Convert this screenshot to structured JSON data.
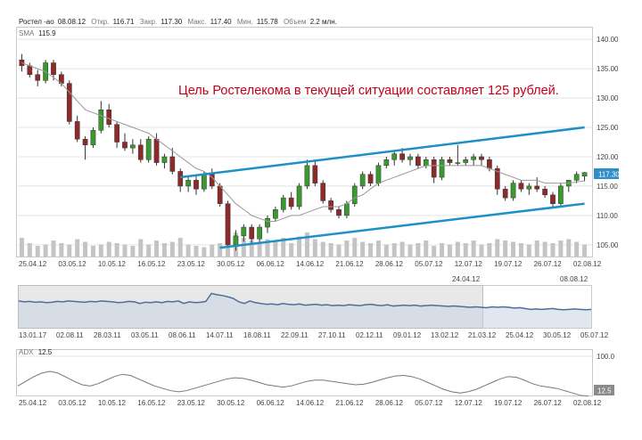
{
  "header": {
    "ticker": "Ростел -ао",
    "date": "08.08.12",
    "open_label": "Откр.",
    "open": "116.71",
    "close_label": "Закр.",
    "close": "117.30",
    "high_label": "Макс.",
    "high": "117.40",
    "low_label": "Мин.",
    "low": "115.78",
    "volume_label": "Объем",
    "volume": "2.2 млн."
  },
  "sma": {
    "label": "SMA",
    "value": "115.9"
  },
  "annotation": "Цель Ростелекома в текущей ситуации составляет 125 рублей.",
  "price_badge": "117.30",
  "adx": {
    "label": "ADX",
    "value": "12.5",
    "top_tick": "100.0"
  },
  "navigator": {
    "start_label": "24.04.12",
    "end_label": "08.08.12",
    "ticks": [
      "13.01.17",
      "02.08.11",
      "28.03.11",
      "03.05.11",
      "08.06.11",
      "14.07.11",
      "18.08.11",
      "22.09.11",
      "27.10.11",
      "02.12.11",
      "09.01.12",
      "13.02.12",
      "21.03.12",
      "25.04.12",
      "30.05.12",
      "05.07.12"
    ],
    "series": [
      64,
      62,
      63,
      61,
      62,
      60,
      61,
      63,
      62,
      64,
      63,
      62,
      61,
      63,
      62,
      64,
      63,
      62,
      60,
      61,
      63,
      62,
      58,
      61,
      60,
      62,
      60,
      63,
      62,
      64,
      58,
      62,
      60,
      61,
      63,
      82,
      79,
      77,
      74,
      70,
      62,
      58,
      64,
      60,
      58,
      56,
      57,
      55,
      58,
      56,
      55,
      57,
      54,
      55,
      56,
      54,
      55,
      53,
      54,
      53,
      55,
      54,
      53,
      55,
      56,
      54,
      53,
      55,
      52,
      53,
      54,
      53,
      54,
      52,
      53,
      54,
      53,
      52,
      51,
      52,
      51,
      50,
      49,
      50,
      49,
      48,
      50,
      49,
      50,
      49,
      47,
      48,
      46,
      44,
      45,
      44,
      45,
      46,
      44,
      43,
      44,
      45,
      44,
      43,
      44
    ]
  },
  "colors": {
    "up": "#3a9a2e",
    "down": "#8f2a2a",
    "sma": "#999999",
    "channel": "#1d90c8",
    "annotation": "#c0001a",
    "adx": "#777777",
    "navigator": "#4f6f96"
  },
  "chart_data": {
    "type": "candlestick",
    "title": "",
    "xlabel": "",
    "ylabel": "",
    "ylim": [
      103,
      142
    ],
    "ytick_labels": [
      "105.00",
      "110.00",
      "115.00",
      "120.00",
      "125.00",
      "130.00",
      "135.00",
      "140.00"
    ],
    "xtick_labels": [
      "25.04.12",
      "03.05.12",
      "10.05.12",
      "16.05.12",
      "23.05.12",
      "30.05.12",
      "06.06.12",
      "14.06.12",
      "21.06.12",
      "28.06.12",
      "05.07.12",
      "12.07.12",
      "19.07.12",
      "26.07.12",
      "02.08.12"
    ],
    "ohlc": [
      [
        136.5,
        137.5,
        134.5,
        135.5
      ],
      [
        135.5,
        136.0,
        133.5,
        134.0
      ],
      [
        134.0,
        134.8,
        132.0,
        133.0
      ],
      [
        133.0,
        136.5,
        132.5,
        136.0
      ],
      [
        136.0,
        136.5,
        133.0,
        134.0
      ],
      [
        134.0,
        134.5,
        132.0,
        132.5
      ],
      [
        132.5,
        133.0,
        125.5,
        126.0
      ],
      [
        126.0,
        127.0,
        122.5,
        123.0
      ],
      [
        123.0,
        123.5,
        119.5,
        122.0
      ],
      [
        122.0,
        125.0,
        121.5,
        124.5
      ],
      [
        124.5,
        129.5,
        124.0,
        128.0
      ],
      [
        128.0,
        129.0,
        125.0,
        125.5
      ],
      [
        125.5,
        126.0,
        121.5,
        122.5
      ],
      [
        122.5,
        124.0,
        121.0,
        121.5
      ],
      [
        121.5,
        123.0,
        120.5,
        122.0
      ],
      [
        122.0,
        123.0,
        119.0,
        119.5
      ],
      [
        119.5,
        123.5,
        119.0,
        123.0
      ],
      [
        123.0,
        124.0,
        118.5,
        119.0
      ],
      [
        119.0,
        120.5,
        118.0,
        120.0
      ],
      [
        120.0,
        121.5,
        117.0,
        117.5
      ],
      [
        117.5,
        118.0,
        114.0,
        115.0
      ],
      [
        115.0,
        116.5,
        114.0,
        116.0
      ],
      [
        116.0,
        117.0,
        113.5,
        114.5
      ],
      [
        114.5,
        117.5,
        114.0,
        117.0
      ],
      [
        117.0,
        118.0,
        114.5,
        115.0
      ],
      [
        115.0,
        115.5,
        111.5,
        112.0
      ],
      [
        112.0,
        112.5,
        104.5,
        105.0
      ],
      [
        105.0,
        107.5,
        104.0,
        106.5
      ],
      [
        106.5,
        108.5,
        105.5,
        108.0
      ],
      [
        108.0,
        108.5,
        105.0,
        106.0
      ],
      [
        106.0,
        108.5,
        105.5,
        108.0
      ],
      [
        108.0,
        110.0,
        107.0,
        109.5
      ],
      [
        109.5,
        111.5,
        109.0,
        111.0
      ],
      [
        111.0,
        113.5,
        110.5,
        113.0
      ],
      [
        113.0,
        114.0,
        111.0,
        111.5
      ],
      [
        111.5,
        115.5,
        111.0,
        115.0
      ],
      [
        115.0,
        119.5,
        114.5,
        118.5
      ],
      [
        118.5,
        119.5,
        115.0,
        115.5
      ],
      [
        115.5,
        116.0,
        112.0,
        112.5
      ],
      [
        112.5,
        113.0,
        110.5,
        111.0
      ],
      [
        111.0,
        111.5,
        109.5,
        110.0
      ],
      [
        110.0,
        112.5,
        109.5,
        112.0
      ],
      [
        112.0,
        115.5,
        111.5,
        115.0
      ],
      [
        115.0,
        117.5,
        114.5,
        117.0
      ],
      [
        117.0,
        117.5,
        115.0,
        115.5
      ],
      [
        115.5,
        119.0,
        115.0,
        118.5
      ],
      [
        118.5,
        120.0,
        118.0,
        119.5
      ],
      [
        119.5,
        121.0,
        118.5,
        120.5
      ],
      [
        120.5,
        121.5,
        119.0,
        119.5
      ],
      [
        119.5,
        120.5,
        118.5,
        120.0
      ],
      [
        120.0,
        120.5,
        118.0,
        118.5
      ],
      [
        118.5,
        120.0,
        118.0,
        119.5
      ],
      [
        119.5,
        120.0,
        115.5,
        116.5
      ],
      [
        116.5,
        120.0,
        116.0,
        119.5
      ],
      [
        119.5,
        120.0,
        118.5,
        119.0
      ],
      [
        119.0,
        122.0,
        118.5,
        119.0
      ],
      [
        119.0,
        120.0,
        118.5,
        119.5
      ],
      [
        119.5,
        120.5,
        118.5,
        120.0
      ],
      [
        120.0,
        120.5,
        118.5,
        119.5
      ],
      [
        119.5,
        120.0,
        117.5,
        118.0
      ],
      [
        118.0,
        118.5,
        113.5,
        114.5
      ],
      [
        114.5,
        115.0,
        112.5,
        113.0
      ],
      [
        113.0,
        116.0,
        112.5,
        115.5
      ],
      [
        115.5,
        116.0,
        114.0,
        114.5
      ],
      [
        114.5,
        115.5,
        113.5,
        115.0
      ],
      [
        115.0,
        116.5,
        114.0,
        114.5
      ],
      [
        114.5,
        115.0,
        113.0,
        113.5
      ],
      [
        113.5,
        114.0,
        111.5,
        112.0
      ],
      [
        112.0,
        115.5,
        111.5,
        115.0
      ],
      [
        115.0,
        116.0,
        114.0,
        116.0
      ],
      [
        116.0,
        117.5,
        115.5,
        117.0
      ],
      [
        116.7,
        117.4,
        115.8,
        117.3
      ]
    ],
    "volume": [
      14,
      10,
      8,
      9,
      12,
      10,
      9,
      13,
      11,
      8,
      9,
      11,
      10,
      9,
      8,
      13,
      9,
      12,
      10,
      11,
      14,
      9,
      8,
      7,
      9,
      10,
      16,
      18,
      14,
      12,
      11,
      13,
      12,
      14,
      10,
      15,
      18,
      13,
      11,
      10,
      9,
      12,
      14,
      11,
      10,
      12,
      9,
      10,
      11,
      9,
      10,
      12,
      8,
      10,
      9,
      11,
      10,
      12,
      9,
      10,
      13,
      12,
      11,
      10,
      9,
      12,
      11,
      10,
      12,
      13,
      11,
      9
    ],
    "sma": [
      136,
      135.5,
      135,
      134.5,
      133.5,
      132.5,
      131,
      129.5,
      128,
      127.5,
      127,
      126.5,
      126,
      125.5,
      125,
      124.5,
      124,
      123,
      122,
      121,
      120,
      119,
      118,
      117.5,
      116.5,
      115,
      113.5,
      112,
      111,
      110,
      109.5,
      109,
      109,
      109.5,
      110,
      110,
      110.5,
      111,
      111.5,
      111.5,
      111.5,
      112,
      113,
      113.5,
      114.5,
      115.5,
      116,
      116.5,
      117,
      117.5,
      118,
      118.5,
      118.5,
      118.5,
      118.5,
      118.5,
      118.5,
      118.5,
      118.5,
      118,
      117.5,
      117,
      116.5,
      116,
      116,
      116,
      115.5,
      115.5,
      115.5,
      115.5,
      115.7,
      115.9
    ],
    "channel_upper": [
      [
        20,
        116.5
      ],
      [
        71,
        125
      ]
    ],
    "channel_lower": [
      [
        25,
        104.5
      ],
      [
        71,
        112
      ]
    ],
    "adx": {
      "ylim": [
        0,
        100
      ],
      "values": [
        30,
        38,
        46,
        52,
        55,
        52,
        45,
        38,
        32,
        30,
        34,
        40,
        46,
        50,
        48,
        42,
        36,
        30,
        26,
        22,
        20,
        22,
        26,
        30,
        34,
        38,
        42,
        44,
        43,
        40,
        36,
        32,
        30,
        28,
        30,
        34,
        38,
        40,
        40,
        38,
        36,
        34,
        32,
        33,
        36,
        40,
        44,
        47,
        48,
        46,
        42,
        36,
        30,
        24,
        20,
        18,
        20,
        24,
        30,
        36,
        42,
        46,
        45,
        40,
        34,
        30,
        28,
        26,
        22,
        18,
        14,
        12.5
      ]
    }
  }
}
